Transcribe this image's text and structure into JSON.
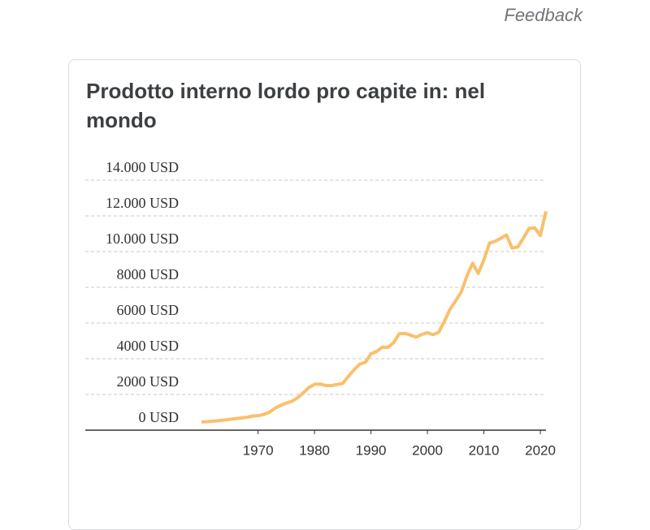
{
  "feedback": "Feedback",
  "chart_data": {
    "type": "line",
    "title": "Prodotto interno lordo pro capite in: nel mondo",
    "x": [
      1960,
      1961,
      1962,
      1963,
      1964,
      1965,
      1966,
      1967,
      1968,
      1969,
      1970,
      1971,
      1972,
      1973,
      1974,
      1975,
      1976,
      1977,
      1978,
      1979,
      1980,
      1981,
      1982,
      1983,
      1984,
      1985,
      1986,
      1987,
      1988,
      1989,
      1990,
      1991,
      1992,
      1993,
      1994,
      1995,
      1996,
      1997,
      1998,
      1999,
      2000,
      2001,
      2002,
      2003,
      2004,
      2005,
      2006,
      2007,
      2008,
      2009,
      2010,
      2011,
      2012,
      2013,
      2014,
      2015,
      2016,
      2017,
      2018,
      2019,
      2020,
      2021
    ],
    "series": [
      {
        "color": "#f9c06c",
        "values": [
          460,
          475,
          500,
          530,
          570,
          610,
          650,
          680,
          720,
          790,
          810,
          880,
          1000,
          1230,
          1390,
          1520,
          1620,
          1810,
          2090,
          2390,
          2570,
          2580,
          2500,
          2500,
          2560,
          2620,
          3020,
          3380,
          3700,
          3800,
          4280,
          4410,
          4650,
          4640,
          4900,
          5400,
          5420,
          5320,
          5210,
          5360,
          5460,
          5350,
          5480,
          6090,
          6780,
          7240,
          7750,
          8640,
          9350,
          8780,
          9540,
          10480,
          10580,
          10750,
          10930,
          10200,
          10260,
          10760,
          11300,
          11330,
          10900,
          12260
        ]
      }
    ],
    "xlim": [
      1939.4,
      2021
    ],
    "xticks": [
      1970,
      1980,
      1990,
      2000,
      2010,
      2020
    ],
    "ylim": [
      0,
      14000
    ],
    "yticks": [
      {
        "value": 0,
        "label": "0 USD"
      },
      {
        "value": 2000,
        "label": "2000 USD"
      },
      {
        "value": 4000,
        "label": "4000 USD"
      },
      {
        "value": 6000,
        "label": "6000 USD"
      },
      {
        "value": 8000,
        "label": "8000 USD"
      },
      {
        "value": 10000,
        "label": "10.000 USD"
      },
      {
        "value": 12000,
        "label": "12.000 USD"
      },
      {
        "value": 14000,
        "label": "14.000 USD"
      }
    ],
    "grid": true
  }
}
